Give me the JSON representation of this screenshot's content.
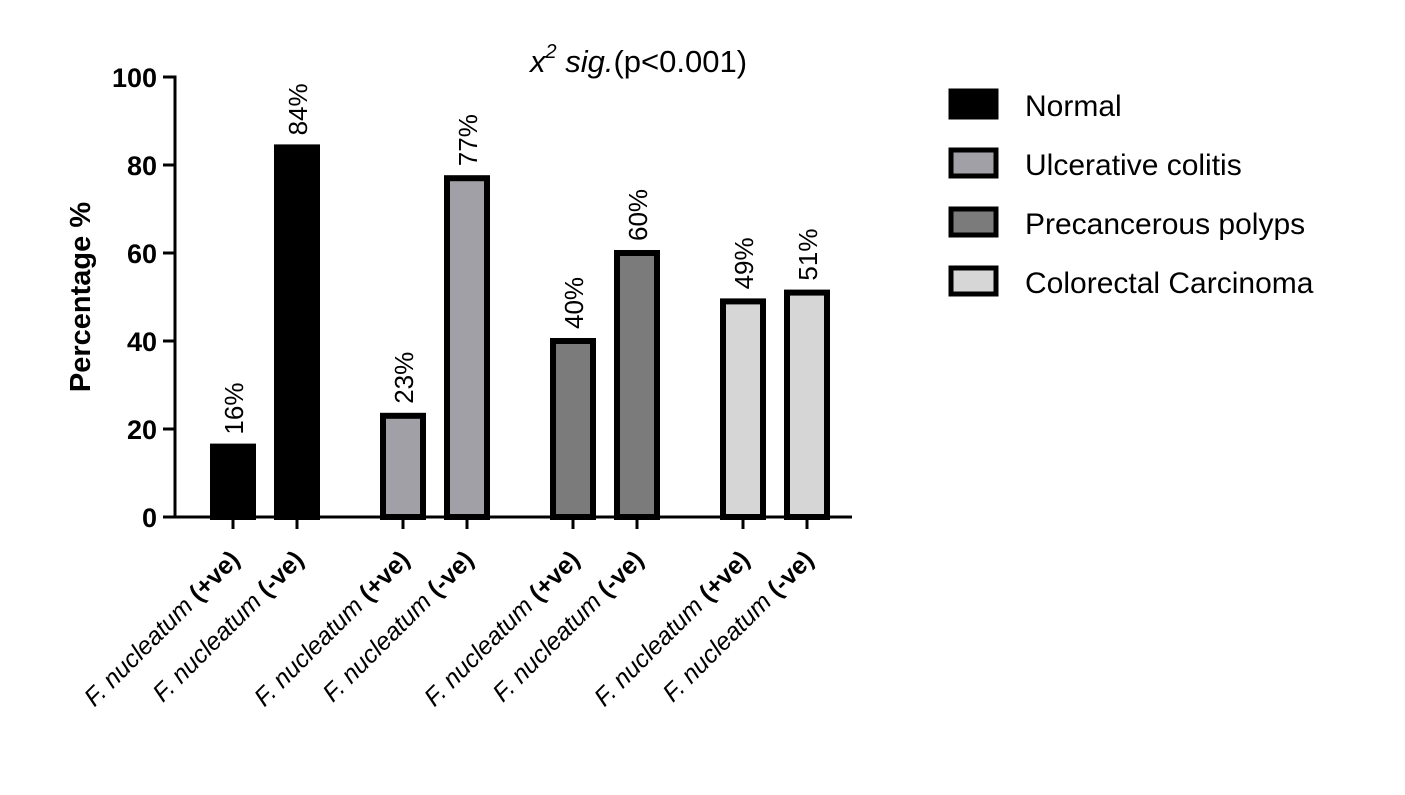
{
  "chart_data": {
    "type": "bar",
    "title": {
      "prefix": "x",
      "superscript": "2",
      "italic_word": " sig.",
      "suffix": "(p<0.001)"
    },
    "ylabel": "Percentage %",
    "xlabel": "",
    "ylim": [
      0,
      100
    ],
    "yticks": [
      0,
      20,
      40,
      60,
      80,
      100
    ],
    "grid": false,
    "legend_position": "right",
    "bars": [
      {
        "group": "Normal",
        "italic": "F. nucleatum",
        "suffix": " (+ve)",
        "value": 16,
        "label": "16%"
      },
      {
        "group": "Normal",
        "italic": "F. nucleatum",
        "suffix": " (-ve)",
        "value": 84,
        "label": "84%"
      },
      {
        "group": "Ulcerative colitis",
        "italic": "F. nucleatum",
        "suffix": " (+ve)",
        "value": 23,
        "label": "23%"
      },
      {
        "group": "Ulcerative colitis",
        "italic": "F. nucleatum",
        "suffix": " (-ve)",
        "value": 77,
        "label": "77%"
      },
      {
        "group": "Precancerous polyps",
        "italic": "F. nucleatum",
        "suffix": " (+ve)",
        "value": 40,
        "label": "40%"
      },
      {
        "group": "Precancerous polyps",
        "italic": "F. nucleatum",
        "suffix": " (-ve)",
        "value": 60,
        "label": "60%"
      },
      {
        "group": "Colorectal Carcinoma",
        "italic": "F. nucleatum",
        "suffix": " (+ve)",
        "value": 49,
        "label": "49%"
      },
      {
        "group": "Colorectal Carcinoma",
        "italic": "F. nucleatum",
        "suffix": " (-ve)",
        "value": 51,
        "label": "51%"
      }
    ],
    "legend": [
      {
        "name": "Normal",
        "color": "#000000"
      },
      {
        "name": "Ulcerative colitis",
        "color": "#a0a0a6"
      },
      {
        "name": "Precancerous polyps",
        "color": "#7b7b7b"
      },
      {
        "name": "Colorectal Carcinoma",
        "color": "#d6d6d6"
      }
    ]
  }
}
